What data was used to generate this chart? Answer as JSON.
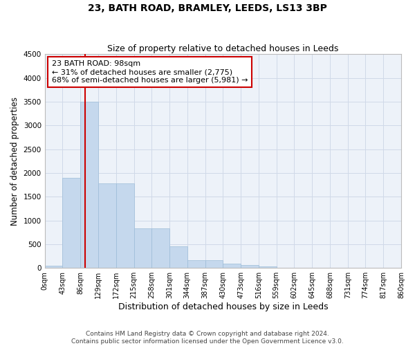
{
  "title": "23, BATH ROAD, BRAMLEY, LEEDS, LS13 3BP",
  "subtitle": "Size of property relative to detached houses in Leeds",
  "xlabel": "Distribution of detached houses by size in Leeds",
  "ylabel": "Number of detached properties",
  "footer_line1": "Contains HM Land Registry data © Crown copyright and database right 2024.",
  "footer_line2": "Contains public sector information licensed under the Open Government Licence v3.0.",
  "bar_color": "#c5d8ed",
  "bar_edge_color": "#9dbcd8",
  "grid_color": "#d0d9e8",
  "background_color": "#edf2f9",
  "annotation_text": "23 BATH ROAD: 98sqm\n← 31% of detached houses are smaller (2,775)\n68% of semi-detached houses are larger (5,981) →",
  "property_sqm": 98,
  "bin_width": 43,
  "bins": [
    0,
    43,
    86,
    129,
    172,
    215,
    258,
    301,
    344,
    387,
    430,
    473,
    516,
    559,
    602,
    645,
    688,
    731,
    774,
    817,
    860
  ],
  "bar_heights": [
    40,
    1900,
    3500,
    1780,
    1780,
    840,
    840,
    450,
    160,
    160,
    90,
    55,
    30,
    10,
    5,
    3,
    2,
    1,
    0,
    0
  ],
  "ylim": [
    0,
    4500
  ],
  "yticks": [
    0,
    500,
    1000,
    1500,
    2000,
    2500,
    3000,
    3500,
    4000,
    4500
  ],
  "vline_color": "#cc0000",
  "annotation_box_color": "#cc0000",
  "title_fontsize": 10,
  "subtitle_fontsize": 9,
  "tick_fontsize": 7.5,
  "ylabel_fontsize": 8.5,
  "xlabel_fontsize": 9,
  "annotation_fontsize": 8,
  "footer_fontsize": 6.5
}
